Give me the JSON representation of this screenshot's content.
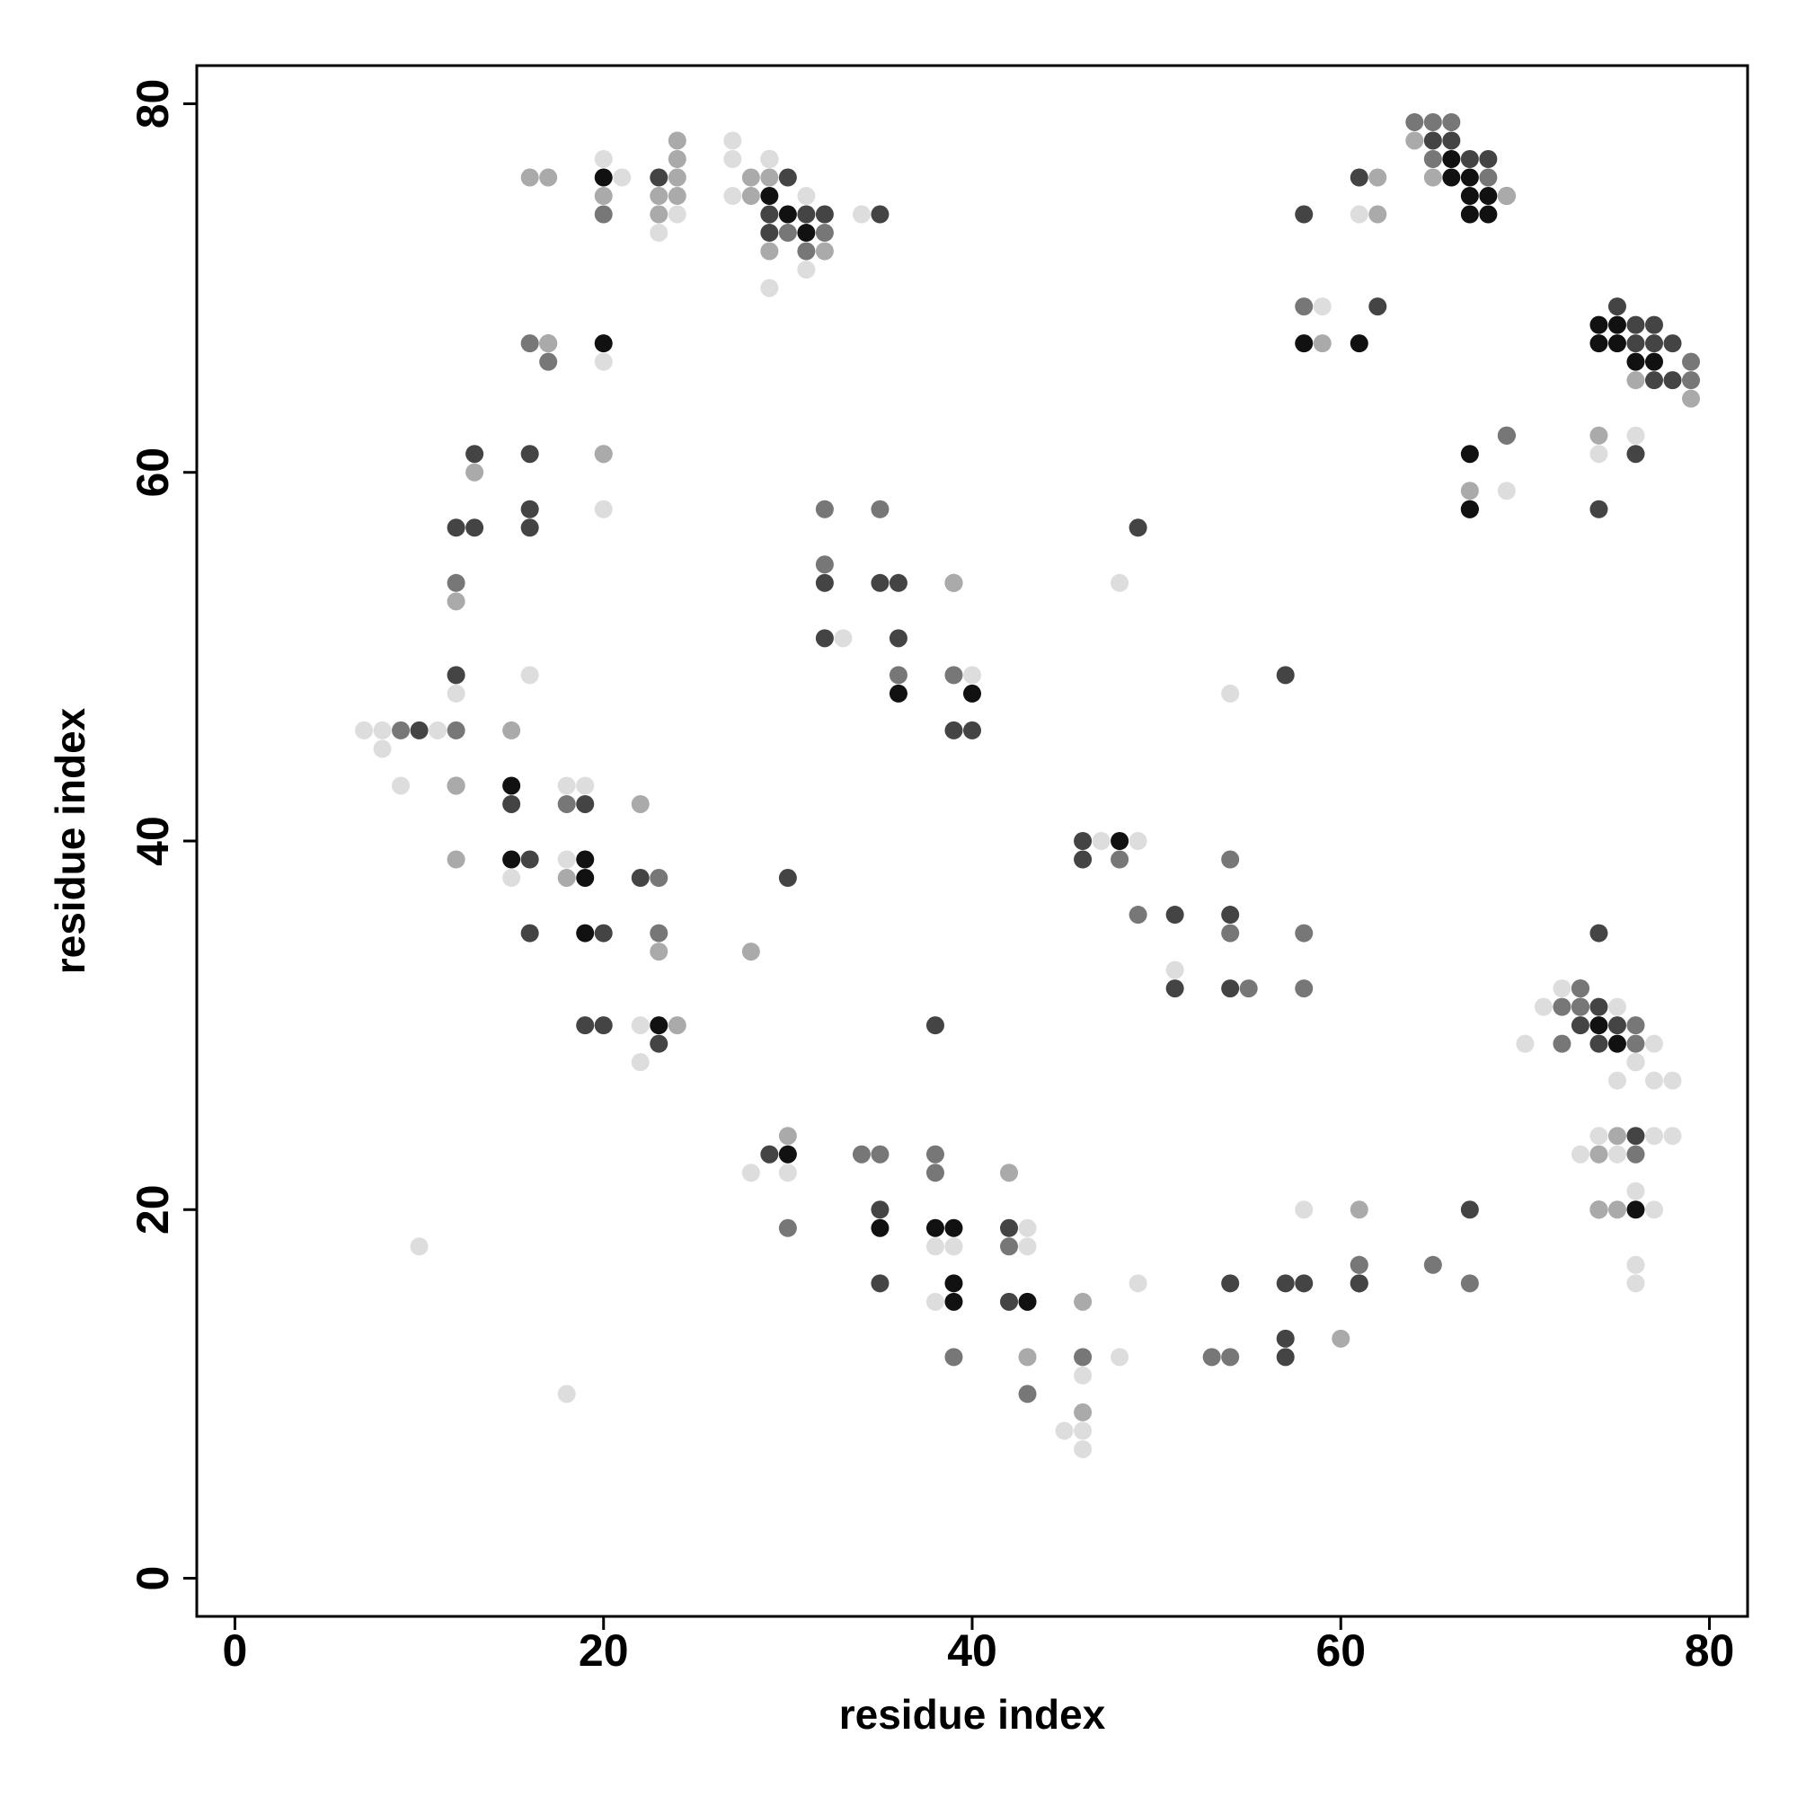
{
  "chart_data": {
    "type": "scatter",
    "x_label": "residue index",
    "y_label": "residue index",
    "xlim": [
      -2.07,
      82.07
    ],
    "ylim": [
      -2.07,
      82.07
    ],
    "xticks": [
      0,
      20,
      40,
      60,
      80
    ],
    "yticks": [
      0,
      20,
      40,
      60,
      80
    ],
    "series": [
      {
        "color": "#111111",
        "x": [
          20,
          29,
          30,
          31,
          20,
          15,
          15,
          19,
          19,
          19,
          23,
          36,
          40,
          48,
          30,
          35,
          38,
          39,
          39,
          39,
          43,
          58,
          61,
          66,
          66,
          67,
          67,
          67,
          68,
          67,
          68,
          67,
          67,
          74,
          75,
          74,
          75,
          76,
          77,
          74,
          75,
          76
        ],
        "y": [
          76,
          75,
          74,
          73,
          67,
          43,
          39,
          39,
          38,
          35,
          30,
          48,
          48,
          40,
          23,
          19,
          19,
          19,
          16,
          15,
          15,
          67,
          67,
          77,
          76,
          76,
          75,
          74,
          75,
          61,
          74,
          58,
          58,
          68,
          68,
          67,
          67,
          66,
          66,
          30,
          29,
          20
        ]
      },
      {
        "color": "#444444",
        "x": [
          23,
          30,
          29,
          31,
          32,
          29,
          35,
          16,
          13,
          12,
          13,
          16,
          16,
          12,
          10,
          15,
          19,
          16,
          22,
          16,
          20,
          19,
          20,
          23,
          30,
          32,
          35,
          36,
          32,
          36,
          39,
          40,
          49,
          57,
          46,
          46,
          51,
          54,
          51,
          54,
          38,
          29,
          35,
          35,
          42,
          42,
          54,
          57,
          58,
          57,
          57,
          61,
          61,
          67,
          58,
          61,
          62,
          65,
          66,
          67,
          68,
          69,
          69,
          75,
          76,
          77,
          76,
          77,
          78,
          77,
          78,
          76,
          74,
          74,
          73,
          74,
          73,
          75,
          73,
          74,
          76,
          74
        ],
        "y": [
          76,
          76,
          74,
          74,
          74,
          73,
          74,
          61,
          61,
          57,
          57,
          58,
          57,
          49,
          46,
          42,
          42,
          39,
          38,
          35,
          35,
          30,
          30,
          29,
          38,
          54,
          54,
          54,
          51,
          51,
          46,
          46,
          57,
          49,
          40,
          39,
          36,
          36,
          32,
          32,
          30,
          23,
          20,
          16,
          19,
          15,
          16,
          16,
          16,
          13,
          12,
          16,
          16,
          20,
          74,
          76,
          69,
          78,
          78,
          77,
          77,
          75,
          62,
          69,
          68,
          67,
          67,
          68,
          67,
          65,
          65,
          61,
          58,
          35,
          32,
          31,
          31,
          30,
          30,
          29,
          24,
          20
        ]
      },
      {
        "color": "#777777",
        "x": [
          20,
          30,
          32,
          31,
          16,
          17,
          17,
          12,
          9,
          12,
          18,
          12,
          32,
          35,
          32,
          39,
          36,
          39,
          48,
          54,
          49,
          55,
          54,
          58,
          58,
          23,
          23,
          38,
          30,
          34,
          35,
          38,
          39,
          43,
          46,
          53,
          54,
          42,
          61,
          65,
          67,
          58,
          64,
          65,
          66,
          65,
          68,
          69,
          79,
          79,
          73,
          72,
          73,
          76,
          72,
          76,
          76,
          61
        ],
        "y": [
          74,
          73,
          73,
          72,
          67,
          67,
          66,
          54,
          46,
          46,
          42,
          43,
          58,
          58,
          55,
          54,
          49,
          49,
          39,
          39,
          36,
          32,
          35,
          35,
          32,
          38,
          35,
          23,
          19,
          23,
          23,
          22,
          12,
          10,
          12,
          12,
          12,
          18,
          17,
          17,
          16,
          69,
          79,
          79,
          79,
          77,
          76,
          62,
          66,
          65,
          32,
          31,
          31,
          30,
          29,
          29,
          23,
          17
        ]
      },
      {
        "color": "#aaaaaa",
        "x": [
          16,
          17,
          20,
          20,
          24,
          24,
          23,
          24,
          23,
          28,
          29,
          28,
          29,
          29,
          32,
          17,
          20,
          13,
          12,
          15,
          12,
          22,
          18,
          23,
          24,
          28,
          39,
          30,
          42,
          43,
          46,
          46,
          60,
          61,
          59,
          62,
          62,
          64,
          65,
          67,
          74,
          79,
          76,
          75,
          74,
          76,
          74,
          69,
          12,
          75,
          24
        ],
        "y": [
          76,
          76,
          75,
          61,
          78,
          77,
          75,
          75,
          74,
          76,
          77,
          75,
          72,
          76,
          72,
          67,
          61,
          60,
          53,
          46,
          43,
          42,
          38,
          34,
          30,
          34,
          54,
          24,
          22,
          12,
          15,
          9,
          13,
          20,
          67,
          76,
          74,
          78,
          76,
          59,
          62,
          64,
          65,
          24,
          23,
          28,
          20,
          75,
          39,
          20,
          76
        ]
      },
      {
        "color": "#dddddd",
        "x": [
          20,
          21,
          24,
          23,
          27,
          27,
          29,
          27,
          31,
          31,
          29,
          34,
          20,
          20,
          12,
          16,
          7,
          8,
          11,
          8,
          9,
          18,
          19,
          18,
          15,
          22,
          22,
          33,
          40,
          48,
          54,
          47,
          49,
          30,
          28,
          38,
          39,
          43,
          43,
          46,
          45,
          46,
          46,
          48,
          49,
          58,
          10,
          18,
          61,
          59,
          69,
          76,
          74,
          71,
          72,
          75,
          70,
          77,
          76,
          75,
          77,
          78,
          74,
          77,
          78,
          73,
          75,
          76,
          77,
          76,
          76,
          51,
          38,
          39
        ],
        "y": [
          77,
          76,
          74,
          73,
          78,
          77,
          77,
          75,
          75,
          71,
          70,
          74,
          66,
          58,
          48,
          49,
          46,
          46,
          46,
          45,
          43,
          43,
          43,
          39,
          38,
          30,
          28,
          51,
          49,
          54,
          48,
          40,
          40,
          22,
          22,
          18,
          18,
          19,
          18,
          11,
          8,
          8,
          7,
          12,
          16,
          20,
          18,
          10,
          74,
          69,
          59,
          62,
          61,
          31,
          32,
          31,
          29,
          29,
          28,
          27,
          27,
          27,
          24,
          24,
          24,
          23,
          23,
          21,
          20,
          17,
          16,
          33,
          15,
          18
        ]
      }
    ]
  }
}
